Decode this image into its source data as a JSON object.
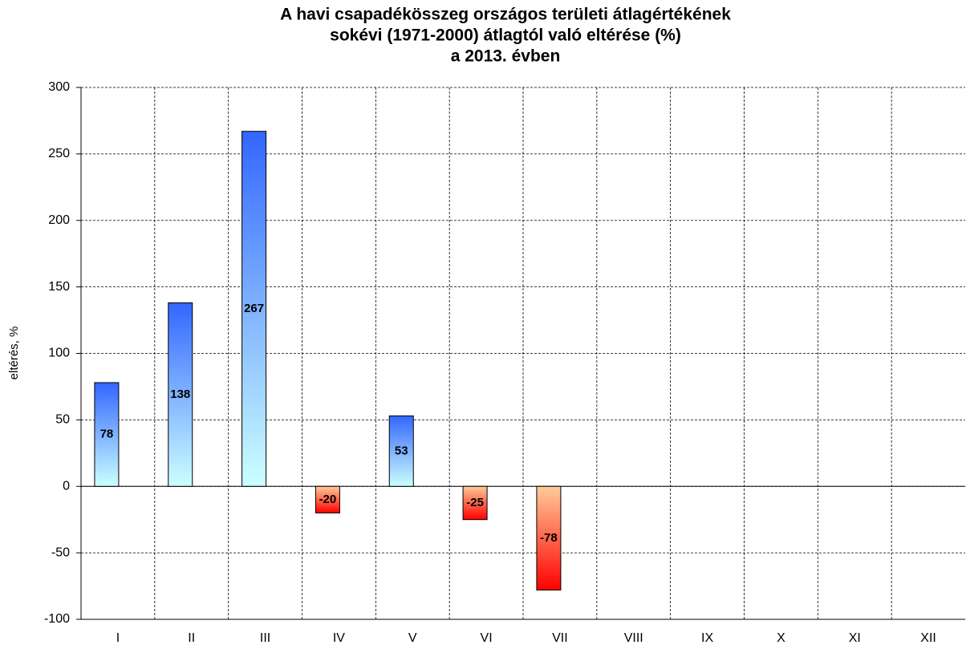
{
  "chart_data": {
    "type": "bar",
    "title": [
      "A havi csapadékösszeg országos területi átlagértékének",
      "sokévi (1971-2000) átlagtól való eltérése (%)",
      "a 2013. évben"
    ],
    "y_label": "eltérés, %",
    "categories": [
      "I",
      "II",
      "III",
      "IV",
      "V",
      "VI",
      "VII",
      "VIII",
      "IX",
      "X",
      "XI",
      "XII"
    ],
    "values": [
      78,
      138,
      267,
      -20,
      53,
      -25,
      -78,
      null,
      null,
      null,
      null,
      null
    ],
    "colors": {
      "positive": [
        "#3366ff",
        "#ccffff"
      ],
      "negative": [
        "#ffcc99",
        "#ff0000"
      ]
    },
    "ylim": [
      -100,
      300
    ],
    "yticks": [
      -100,
      -50,
      0,
      50,
      100,
      150,
      200,
      250,
      300
    ],
    "grid": true
  }
}
